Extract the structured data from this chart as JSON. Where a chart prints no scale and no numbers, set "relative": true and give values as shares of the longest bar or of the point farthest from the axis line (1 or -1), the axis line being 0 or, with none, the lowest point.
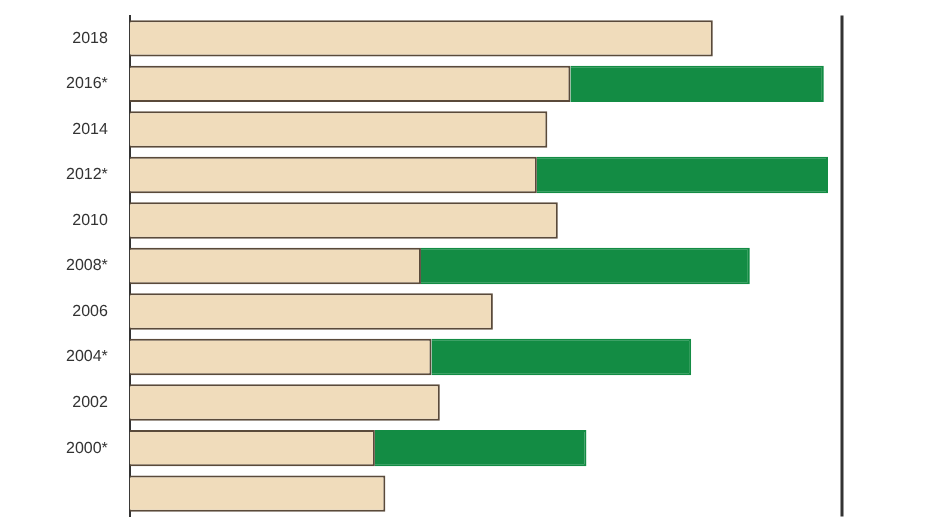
{
  "chart_data": {
    "type": "bar",
    "orientation": "horizontal",
    "stacked": true,
    "relative": true,
    "legend": false,
    "categories": [
      "2018",
      "2016*",
      "2014",
      "2012*",
      "2010",
      "2008*",
      "2006",
      "2004*",
      "2002",
      "2000*",
      null
    ],
    "series": [
      {
        "color": "#f0dcbb",
        "values": [
          0.835,
          0.631,
          0.598,
          0.583,
          0.613,
          0.417,
          0.52,
          0.432,
          0.444,
          0.351,
          0.366
        ]
      },
      {
        "color": "#138c44",
        "values": [
          null,
          0.363,
          null,
          0.417,
          null,
          0.471,
          null,
          0.372,
          null,
          0.303,
          null
        ]
      }
    ]
  }
}
